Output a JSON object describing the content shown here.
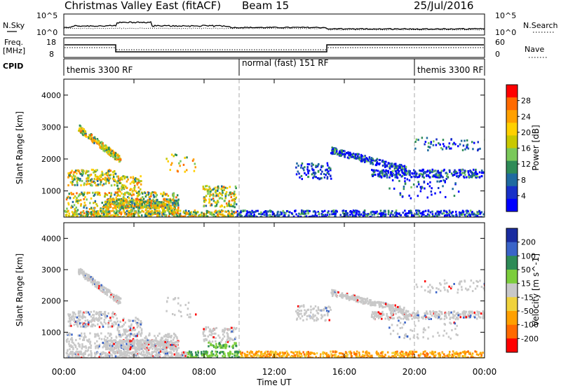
{
  "header": {
    "title": "Christmas Valley East (fitACF)",
    "beam": "Beam 15",
    "date": "25/Jul/2016"
  },
  "noise_panel": {
    "left_label": "N.Sky",
    "right_label": "N.Search",
    "left_ticks": [
      "10^5",
      "10^0"
    ],
    "right_ticks": [
      "10^5",
      "10^0"
    ]
  },
  "freq_panel": {
    "left_label_1": "Freq.",
    "left_label_2": "[MHz]",
    "right_label": "Nave",
    "left_ticks": [
      "18",
      "8"
    ],
    "right_ticks": [
      "60",
      "0"
    ]
  },
  "cpid_panel": {
    "label": "CPID",
    "segments": [
      {
        "start_h": 0,
        "end_h": 10,
        "text": "themis 3300 RF"
      },
      {
        "start_h": 10,
        "end_h": 20,
        "text": "normal (fast) 151 RF"
      },
      {
        "start_h": 20,
        "end_h": 24,
        "text": "themis 3300 RF"
      }
    ]
  },
  "chart_data": [
    {
      "type": "heatmap",
      "quantity": "Power",
      "ylabel": "Slant Range [km]",
      "colorbar_label": "Power [dB]",
      "colorbar_ticks": [
        "28",
        "24",
        "20",
        "16",
        "12",
        "8",
        "4"
      ],
      "colorbar_colors": [
        "#ff0000",
        "#ff6a00",
        "#ffa000",
        "#ffd000",
        "#c8c800",
        "#7ac85a",
        "#2e8b57",
        "#1f6aa0",
        "#1830c8",
        "#0000ff"
      ],
      "x_range_h": [
        0,
        24
      ],
      "y_range_km": [
        180,
        4500
      ],
      "y_ticks": [
        "1000",
        "2000",
        "3000",
        "4000"
      ]
    },
    {
      "type": "heatmap",
      "quantity": "Velocity",
      "ylabel": "Slant Range [km]",
      "colorbar_label": "Velocity [m s^-1]",
      "colorbar_ticks": [
        "200",
        "100",
        "50",
        "15",
        "-15",
        "-50",
        "-100",
        "-200"
      ],
      "colorbar_colors": [
        "#1a2ca0",
        "#3a64c8",
        "#2e8b57",
        "#7ccd3c",
        "#c8c8c8",
        "#f0d23c",
        "#ffa000",
        "#ff6a00",
        "#ff0000"
      ],
      "x_range_h": [
        0,
        24
      ],
      "y_range_km": [
        180,
        4500
      ],
      "y_ticks": [
        "1000",
        "2000",
        "3000",
        "4000"
      ]
    }
  ],
  "x_axis": {
    "ticks": [
      "00:00",
      "04:00",
      "08:00",
      "12:00",
      "16:00",
      "20:00",
      "00:00"
    ],
    "label": "Time UT"
  }
}
